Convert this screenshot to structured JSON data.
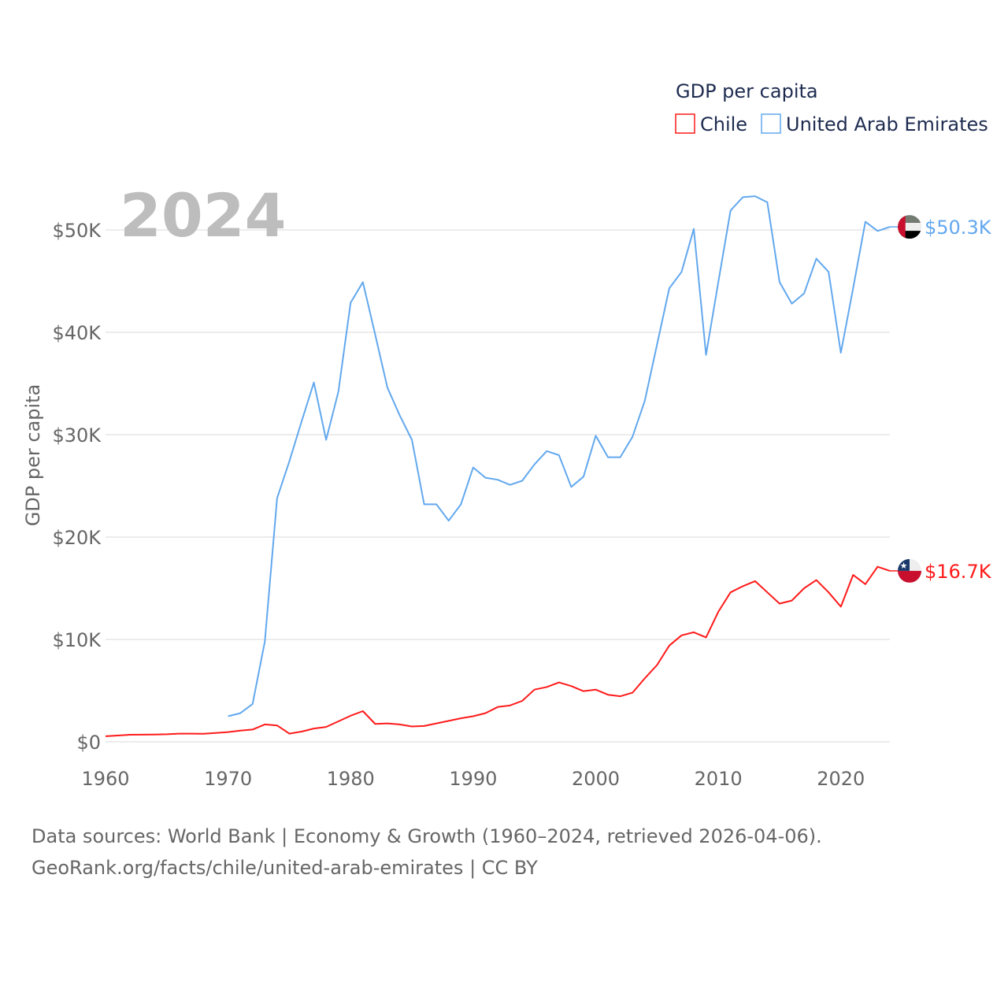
{
  "chart_data": {
    "type": "line",
    "title": "GDP per capita",
    "xlabel": "",
    "ylabel": "GDP per capita",
    "xlim": [
      1960,
      2024
    ],
    "ylim": [
      0,
      55000
    ],
    "x_ticks": [
      1960,
      1970,
      1980,
      1990,
      2000,
      2010,
      2020
    ],
    "x_tick_labels": [
      "1960",
      "1970",
      "1980",
      "1990",
      "2000",
      "2010",
      "2020"
    ],
    "y_ticks": [
      0,
      10000,
      20000,
      30000,
      40000,
      50000
    ],
    "y_tick_labels": [
      "$0",
      "$10K",
      "$20K",
      "$30K",
      "$40K",
      "$50K"
    ],
    "grid": true,
    "legend_position": "top-right",
    "year_label": "2024",
    "series": [
      {
        "name": "Chile",
        "color": "#ff1a1a",
        "end_label": "$16.7K",
        "x": [
          1960,
          1961,
          1962,
          1963,
          1964,
          1965,
          1966,
          1967,
          1968,
          1969,
          1970,
          1971,
          1972,
          1973,
          1974,
          1975,
          1976,
          1977,
          1978,
          1979,
          1980,
          1981,
          1982,
          1983,
          1984,
          1985,
          1986,
          1987,
          1988,
          1989,
          1990,
          1991,
          1992,
          1993,
          1994,
          1995,
          1996,
          1997,
          1998,
          1999,
          2000,
          2001,
          2002,
          2003,
          2004,
          2005,
          2006,
          2007,
          2008,
          2009,
          2010,
          2011,
          2012,
          2013,
          2014,
          2015,
          2016,
          2017,
          2018,
          2019,
          2020,
          2021,
          2022,
          2023,
          2024
        ],
        "values": [
          550,
          620,
          690,
          700,
          710,
          740,
          800,
          800,
          790,
          870,
          950,
          1100,
          1200,
          1700,
          1600,
          800,
          1000,
          1300,
          1450,
          2000,
          2550,
          3000,
          1750,
          1800,
          1700,
          1500,
          1550,
          1800,
          2050,
          2300,
          2500,
          2800,
          3400,
          3550,
          4000,
          5100,
          5350,
          5800,
          5450,
          4950,
          5100,
          4600,
          4450,
          4800,
          6200,
          7500,
          9400,
          10400,
          10700,
          10200,
          12700,
          14600,
          15200,
          15700,
          14600,
          13500,
          13800,
          15000,
          15800,
          14600,
          13200,
          16300,
          15400,
          17100,
          16700
        ]
      },
      {
        "name": "United Arab Emirates",
        "color": "#62a8ee",
        "end_label": "$50.3K",
        "x": [
          1970,
          1971,
          1972,
          1973,
          1974,
          1975,
          1976,
          1977,
          1978,
          1979,
          1980,
          1981,
          1982,
          1983,
          1984,
          1985,
          1986,
          1987,
          1988,
          1989,
          1990,
          1991,
          1992,
          1993,
          1994,
          1995,
          1996,
          1997,
          1998,
          1999,
          2000,
          2001,
          2002,
          2003,
          2004,
          2005,
          2006,
          2007,
          2008,
          2009,
          2010,
          2011,
          2012,
          2013,
          2014,
          2015,
          2016,
          2017,
          2018,
          2019,
          2020,
          2021,
          2022,
          2023,
          2024
        ],
        "values": [
          2500,
          2800,
          3700,
          9800,
          23800,
          27400,
          31300,
          35100,
          29500,
          34200,
          42900,
          44900,
          39800,
          34600,
          31900,
          29500,
          23200,
          23200,
          21600,
          23200,
          26800,
          25800,
          25600,
          25100,
          25500,
          27100,
          28400,
          28000,
          24900,
          25900,
          29900,
          27800,
          27800,
          29800,
          33300,
          38800,
          44300,
          45900,
          50100,
          37800,
          44900,
          51900,
          53200,
          53300,
          52700,
          44900,
          42800,
          43800,
          47200,
          45900,
          38000,
          44300,
          50800,
          49900,
          50300
        ]
      }
    ]
  },
  "footer": {
    "line1": "Data sources: World Bank | Economy & Growth (1960–2024, retrieved 2026-04-06).",
    "line2": "GeoRank.org/facts/chile/united-arab-emirates | CC BY"
  }
}
